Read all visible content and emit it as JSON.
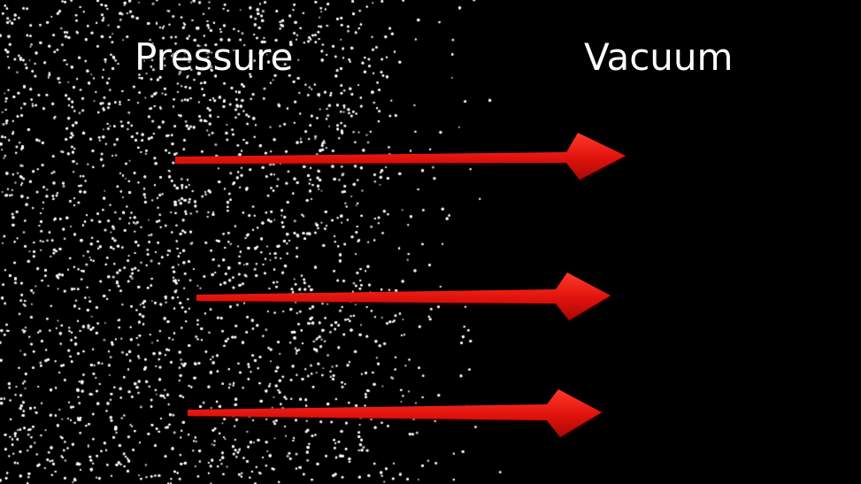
{
  "labels": {
    "pressure": "Pressure",
    "vacuum": "Vacuum"
  },
  "colors": {
    "background": "#000000",
    "particle": "#ffffff",
    "arrow": "#e0120c",
    "arrow_highlight": "#ff3a2a",
    "label": "#ffffff"
  },
  "arrows": [
    {
      "name": "arrow-top"
    },
    {
      "name": "arrow-middle"
    },
    {
      "name": "arrow-bottom"
    }
  ],
  "particle_region": "left"
}
